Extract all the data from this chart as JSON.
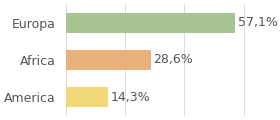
{
  "categories": [
    "Europa",
    "Africa",
    "America"
  ],
  "values": [
    57.1,
    28.6,
    14.3
  ],
  "labels": [
    "57,1%",
    "28,6%",
    "14,3%"
  ],
  "bar_colors": [
    "#a8c490",
    "#e8b07a",
    "#f0d878"
  ],
  "background_color": "#ffffff",
  "xlim": [
    0,
    70
  ],
  "bar_height": 0.55,
  "label_fontsize": 9,
  "tick_fontsize": 9
}
